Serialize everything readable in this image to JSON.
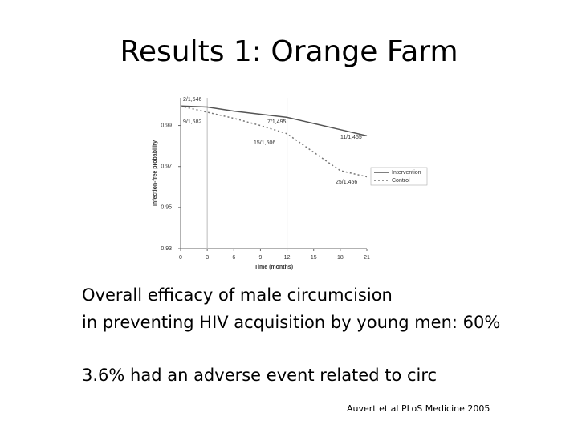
{
  "title": "Results 1: Orange Farm",
  "body": [
    "Overall efficacy of male circumcision",
    "in preventing HIV acquisition by young men: 60%",
    "3.6% had an adverse event related to circ"
  ],
  "citation": "Auvert et al PLoS Medicine 2005",
  "chart_data": {
    "type": "line",
    "x_label": "Time (months)",
    "y_label": "Infection-free probability",
    "x": [
      0,
      3,
      6,
      9,
      12,
      15,
      18,
      21
    ],
    "series": [
      {
        "name": "Intervention",
        "color": "#555555",
        "dash": "solid",
        "values": [
          0.9995,
          0.999,
          0.997,
          0.9955,
          0.994,
          0.991,
          0.988,
          0.985
        ]
      },
      {
        "name": "Control",
        "color": "#777777",
        "dash": "dotted",
        "values": [
          0.9995,
          0.9965,
          0.9935,
          0.99,
          0.986,
          0.977,
          0.968,
          0.965
        ]
      }
    ],
    "annotations": [
      "2/1,546",
      "9/1,582",
      "7/1,495",
      "15/1,506",
      "11/1,455",
      "25/1,456"
    ],
    "xlim": [
      0,
      21
    ],
    "xticks": [
      0,
      3,
      6,
      9,
      12,
      15,
      18,
      21
    ],
    "ylim": [
      0.93,
      1.0
    ],
    "yticks": [
      0.93,
      0.95,
      0.97,
      0.99
    ],
    "reference_lines_x": [
      3,
      12
    ],
    "legend": "right"
  }
}
